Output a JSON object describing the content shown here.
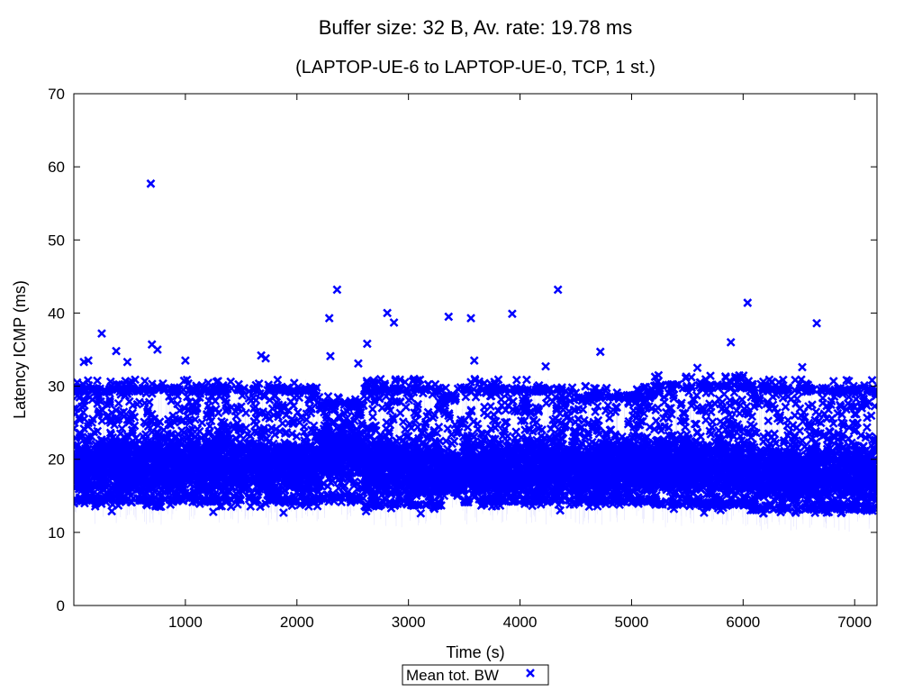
{
  "chart_data": {
    "type": "scatter",
    "title": "Buffer size: 32 B, Av. rate: 19.78 ms",
    "subtitle": "(LAPTOP-UE-6 to LAPTOP-UE-0, TCP, 1 st.)",
    "xlabel": "Time (s)",
    "ylabel": "Latency ICMP (ms)",
    "xlim": [
      0,
      7200
    ],
    "ylim": [
      0,
      70
    ],
    "x_ticks": [
      1000,
      2000,
      3000,
      4000,
      5000,
      6000,
      7000
    ],
    "y_ticks": [
      0,
      10,
      20,
      30,
      40,
      50,
      60,
      70
    ],
    "grid": false,
    "legend_position": "bottom-center",
    "marker": "x",
    "color": "#0000ff",
    "series": [
      {
        "name": "Mean tot. BW",
        "segments": [
          {
            "x_start": 0,
            "x_end": 2200,
            "band": [
              13.5,
              31
            ],
            "core": [
              16,
              22
            ]
          },
          {
            "x_start": 2200,
            "x_end": 2600,
            "band": [
              14,
              29
            ],
            "core": [
              18,
              24
            ]
          },
          {
            "x_start": 2600,
            "x_end": 3300,
            "band": [
              13,
              31
            ],
            "core": [
              16,
              22
            ]
          },
          {
            "x_start": 3300,
            "x_end": 3500,
            "band": [
              15,
              30
            ],
            "core": [
              16,
              20
            ]
          },
          {
            "x_start": 3500,
            "x_end": 4300,
            "band": [
              13.5,
              31
            ],
            "core": [
              16,
              22
            ]
          },
          {
            "x_start": 4300,
            "x_end": 5200,
            "band": [
              13.5,
              30
            ],
            "core": [
              16,
              22
            ]
          },
          {
            "x_start": 5200,
            "x_end": 6100,
            "band": [
              13,
              31.5
            ],
            "core": [
              16,
              22
            ]
          },
          {
            "x_start": 6100,
            "x_end": 7200,
            "band": [
              12.5,
              31
            ],
            "core": [
              15,
              21
            ]
          }
        ],
        "points": [
          {
            "x": 30,
            "y": 30.5
          },
          {
            "x": 90,
            "y": 33.3
          },
          {
            "x": 130,
            "y": 33.5
          },
          {
            "x": 250,
            "y": 37.2
          },
          {
            "x": 380,
            "y": 34.8
          },
          {
            "x": 480,
            "y": 33.3
          },
          {
            "x": 690,
            "y": 57.7
          },
          {
            "x": 700,
            "y": 35.7
          },
          {
            "x": 750,
            "y": 35.0
          },
          {
            "x": 1000,
            "y": 33.5
          },
          {
            "x": 1680,
            "y": 34.2
          },
          {
            "x": 1720,
            "y": 33.8
          },
          {
            "x": 2290,
            "y": 39.3
          },
          {
            "x": 2300,
            "y": 34.1
          },
          {
            "x": 2360,
            "y": 43.2
          },
          {
            "x": 2550,
            "y": 33.1
          },
          {
            "x": 2630,
            "y": 35.8
          },
          {
            "x": 2810,
            "y": 40.0
          },
          {
            "x": 2870,
            "y": 38.7
          },
          {
            "x": 3360,
            "y": 39.5
          },
          {
            "x": 3560,
            "y": 39.3
          },
          {
            "x": 3590,
            "y": 33.5
          },
          {
            "x": 3930,
            "y": 39.9
          },
          {
            "x": 4230,
            "y": 32.7
          },
          {
            "x": 4340,
            "y": 43.2
          },
          {
            "x": 4720,
            "y": 34.7
          },
          {
            "x": 5590,
            "y": 32.5
          },
          {
            "x": 5890,
            "y": 36.0
          },
          {
            "x": 6040,
            "y": 41.4
          },
          {
            "x": 6530,
            "y": 32.6
          },
          {
            "x": 6660,
            "y": 38.6
          },
          {
            "x": 340,
            "y": 12.9
          },
          {
            "x": 1250,
            "y": 12.8
          },
          {
            "x": 1880,
            "y": 12.7
          },
          {
            "x": 2620,
            "y": 12.9
          },
          {
            "x": 3110,
            "y": 12.6
          },
          {
            "x": 4360,
            "y": 13.0
          },
          {
            "x": 5650,
            "y": 12.7
          },
          {
            "x": 6180,
            "y": 12.6
          },
          {
            "x": 6750,
            "y": 12.7
          }
        ]
      }
    ]
  }
}
